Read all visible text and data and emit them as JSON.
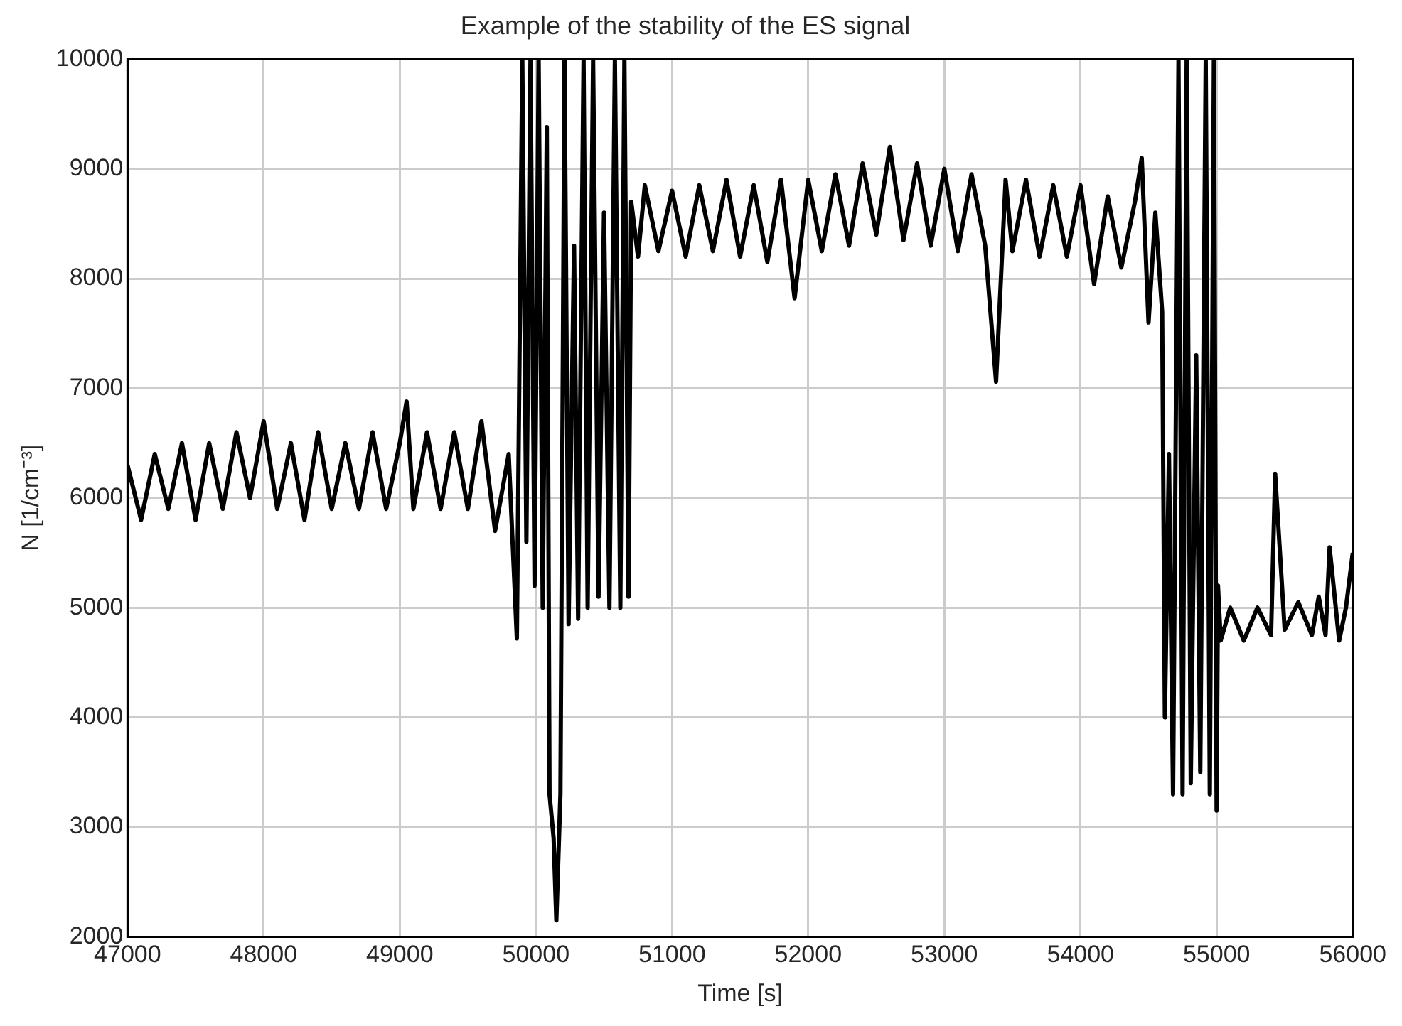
{
  "chart_data": {
    "type": "line",
    "title": "Example of the stability of the ES signal",
    "xlabel": "Time [s]",
    "ylabel": "N [1/cm⁻³]",
    "x": [
      47000,
      47100,
      47200,
      47300,
      47400,
      47500,
      47600,
      47700,
      47800,
      47900,
      48000,
      48100,
      48200,
      48300,
      48400,
      48500,
      48600,
      48700,
      48800,
      48900,
      49000,
      49050,
      49100,
      49200,
      49300,
      49400,
      49500,
      49600,
      49700,
      49800,
      49860,
      49900,
      49930,
      49960,
      49990,
      50020,
      50050,
      50080,
      50100,
      50130,
      50150,
      50180,
      50210,
      50240,
      50280,
      50310,
      50350,
      50380,
      50420,
      50460,
      50500,
      50540,
      50580,
      50620,
      50650,
      50680,
      50700,
      50750,
      50800,
      50900,
      51000,
      51100,
      51200,
      51300,
      51400,
      51500,
      51600,
      51700,
      51800,
      51900,
      52000,
      52100,
      52200,
      52300,
      52400,
      52500,
      52600,
      52700,
      52800,
      52900,
      53000,
      53100,
      53200,
      53300,
      53380,
      53450,
      53500,
      53600,
      53700,
      53800,
      53900,
      54000,
      54100,
      54200,
      54300,
      54400,
      54450,
      54500,
      54550,
      54600,
      54620,
      54650,
      54680,
      54720,
      54750,
      54780,
      54810,
      54850,
      54880,
      54920,
      54950,
      54980,
      55000,
      55010,
      55030,
      55100,
      55200,
      55300,
      55400,
      55430,
      55500,
      55600,
      55700,
      55750,
      55800,
      55830,
      55900,
      55950,
      56000
    ],
    "series": [
      {
        "color": "#000000",
        "values": [
          6300,
          5800,
          6400,
          5900,
          6500,
          5800,
          6500,
          5900,
          6600,
          6000,
          6700,
          5900,
          6500,
          5800,
          6600,
          5900,
          6500,
          5900,
          6600,
          5900,
          6500,
          6880,
          5900,
          6600,
          5900,
          6600,
          5900,
          6700,
          5700,
          6400,
          4720,
          10000,
          5600,
          10000,
          5200,
          10000,
          5000,
          9380,
          3300,
          2900,
          2150,
          3300,
          10000,
          4850,
          8300,
          4900,
          10000,
          5000,
          10000,
          5100,
          8600,
          5000,
          10000,
          5000,
          10000,
          5100,
          8700,
          8200,
          8850,
          8250,
          8800,
          8200,
          8850,
          8250,
          8900,
          8200,
          8850,
          8150,
          8900,
          7820,
          8900,
          8250,
          8950,
          8300,
          9050,
          8400,
          9200,
          8350,
          9050,
          8300,
          9000,
          8250,
          8950,
          8300,
          7060,
          8900,
          8250,
          8900,
          8200,
          8850,
          8200,
          8850,
          7950,
          8750,
          8100,
          8700,
          9100,
          7600,
          8600,
          7700,
          4000,
          6400,
          3300,
          10000,
          3300,
          10000,
          3400,
          7300,
          3500,
          10000,
          3300,
          10000,
          3150,
          5200,
          4700,
          5000,
          4700,
          5000,
          4750,
          6220,
          4800,
          5050,
          4750,
          5100,
          4750,
          5550,
          4700,
          5000,
          5500
        ]
      }
    ],
    "xlim": [
      47000,
      56000
    ],
    "xticks": [
      47000,
      48000,
      49000,
      50000,
      51000,
      52000,
      53000,
      54000,
      55000,
      56000
    ],
    "ylim": [
      2000,
      10000
    ],
    "yticks": [
      2000,
      3000,
      4000,
      5000,
      6000,
      7000,
      8000,
      9000,
      10000
    ],
    "grid": true,
    "legend": false,
    "marker": "none",
    "line_style": "solid"
  }
}
